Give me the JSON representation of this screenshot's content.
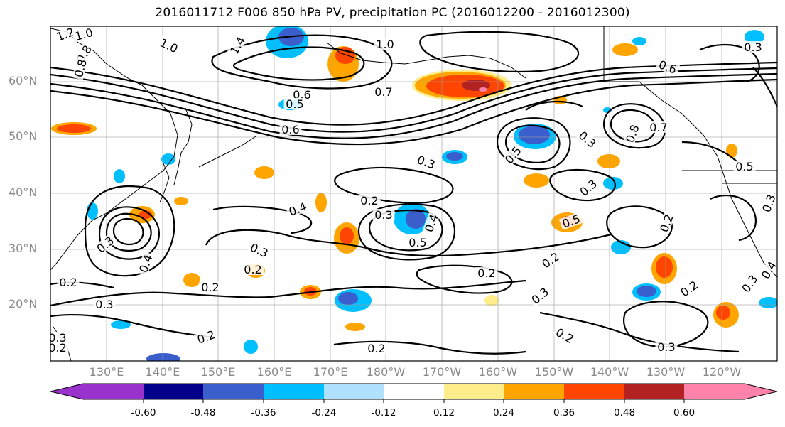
{
  "title": "2016011712 F006 850 hPa PV, precipitation PC (2016012200 - 2016012300)",
  "map": {
    "projection": "cylindrical (lat/lon)",
    "lon_range": [
      "120°E",
      "120°W"
    ],
    "lat_range": [
      10,
      70
    ],
    "lat_labels": [
      "60°N",
      "50°N",
      "40°N",
      "30°N",
      "20°N"
    ],
    "lon_labels": [
      "130°E",
      "140°E",
      "150°E",
      "160°E",
      "170°E",
      "180°W",
      "170°W",
      "160°W",
      "150°W",
      "140°W",
      "130°W",
      "120°W"
    ],
    "grid": true,
    "contour_field": "850 hPa PV",
    "contour_color": "#000000",
    "fill_field": "precipitation PC",
    "contour_labels": [
      "1.2",
      "1.0",
      "1.0",
      "0.8",
      "1.4",
      "0.8",
      "1.0",
      "0.7",
      "0.6",
      "0.5",
      "0.6",
      "0.3",
      "0.5",
      "0.6",
      "0.8",
      "0.7",
      "0.3",
      "0.5",
      "0.3",
      "0.4",
      "0.2",
      "0.3",
      "0.4",
      "0.5",
      "0.2",
      "0.3",
      "0.2",
      "0.3",
      "0.2",
      "0.2",
      "0.3",
      "0.2",
      "0.2",
      "0.2",
      "0.2",
      "0.3",
      "0.2",
      "0.2",
      "0.3",
      "0.5",
      "0.3",
      "0.4",
      "0.3",
      "0.4",
      "0.3",
      "0.2",
      "0.3"
    ]
  },
  "colorbar": {
    "levels": [
      "-0.60",
      "-0.48",
      "-0.36",
      "-0.24",
      "-0.12",
      "0.12",
      "0.24",
      "0.36",
      "0.48",
      "0.60"
    ],
    "colors": [
      "#9932cc",
      "#00008b",
      "#3a5fcd",
      "#00bfff",
      "#b0e2ff",
      "#ffffff",
      "#ffec8b",
      "#ffa500",
      "#ff4500",
      "#b22222",
      "#ff82ab"
    ],
    "extend": "both"
  }
}
